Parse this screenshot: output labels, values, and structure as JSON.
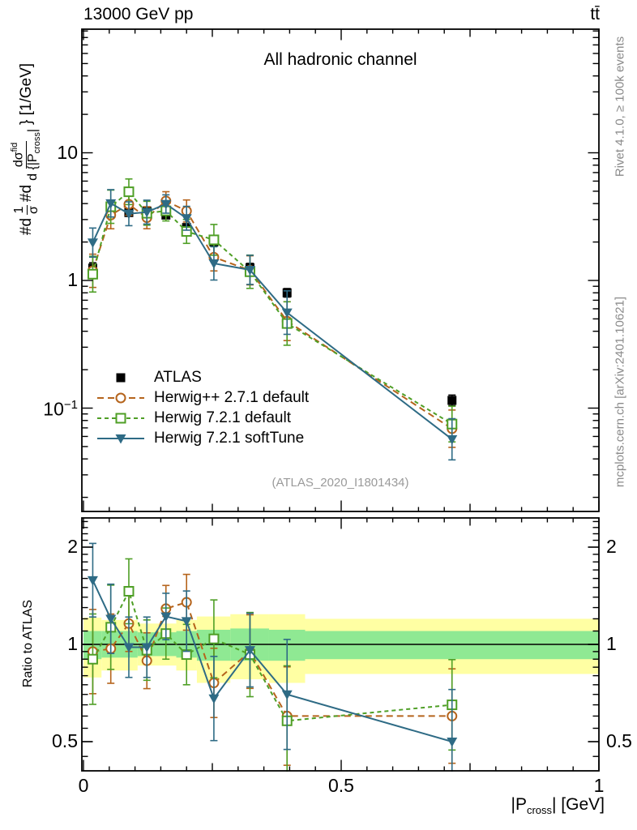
{
  "header": {
    "left": "13000 GeV pp",
    "right": "tt̄"
  },
  "main": {
    "title": "All hadronic channel",
    "watermark": "(ATLAS_2020_I1801434)"
  },
  "right_margin": {
    "top": "Rivet 4.1.0, ≥ 100k events",
    "bottom": "mcplots.cern.ch [arXiv:2401.10621]"
  },
  "ylabel": {
    "prefix1": "#d",
    "frac1_num": "1",
    "frac1_den": "σ",
    "prefix2": "#d",
    "frac2_num": "dσ",
    "frac2_num_sup": "fid",
    "frac2_den": "d {|P",
    "frac2_den_sub": "cross",
    "frac2_den_post": "|",
    "suffix": "} [1/GeV]"
  },
  "xlabel": {
    "pre": "|P",
    "sub": "cross",
    "post": "| [GeV]"
  },
  "ratio": {
    "ylabel": "Ratio to ATLAS"
  },
  "chart_data": {
    "type": "line",
    "title": "All hadronic channel",
    "xlabel": "|P_cross| [GeV]",
    "ylabel": "#d 1/σ #d dσ^fid / d{|P_cross|} [1/GeV]",
    "ratio_ylabel": "Ratio to ATLAS",
    "x_axis": {
      "min": 0,
      "max": 1,
      "ticks": [
        {
          "v": 0,
          "label": "0"
        },
        {
          "v": 0.5,
          "label": "0.5"
        },
        {
          "v": 1,
          "label": "1"
        }
      ],
      "minor_step": 0.05
    },
    "main_axis": {
      "log": true,
      "ymin": 0.0153,
      "ymax": 94,
      "ticks": [
        {
          "v": 10,
          "base": "10",
          "sup": ""
        },
        {
          "v": 1,
          "base": "1",
          "sup": ""
        },
        {
          "v": 0.1,
          "base": "10",
          "sup": "−1"
        }
      ]
    },
    "ratio_axis": {
      "log": true,
      "ymin": 0.404,
      "ymax": 2.47,
      "ticks": [
        {
          "v": 2,
          "base": "2",
          "sup": ""
        },
        {
          "v": 1,
          "base": "1",
          "sup": ""
        },
        {
          "v": 0.5,
          "base": "0.5",
          "sup": ""
        }
      ],
      "minor": [
        0.45,
        0.5,
        0.55,
        0.6,
        0.65,
        0.7,
        0.75,
        0.8,
        0.85,
        0.9,
        0.95,
        1,
        1.1,
        1.2,
        1.3,
        1.4,
        1.5,
        1.6,
        1.7,
        1.8,
        1.9,
        2,
        2.1,
        2.2,
        2.3,
        2.4
      ]
    },
    "x": [
      0.018,
      0.053,
      0.088,
      0.123,
      0.16,
      0.2,
      0.253,
      0.323,
      0.395,
      0.715
    ],
    "bin_edges": [
      0,
      0.035,
      0.07,
      0.105,
      0.14,
      0.18,
      0.22,
      0.285,
      0.36,
      0.43,
      1.0
    ],
    "series": [
      {
        "id": "atlas",
        "name": "ATLAS",
        "color": "#000000",
        "marker": "square-filled",
        "line": "none",
        "values": [
          1.25,
          3.35,
          3.4,
          3.5,
          3.25,
          2.6,
          2.0,
          1.26,
          0.8,
          0.115
        ],
        "err_factor": [
          1.1,
          1.06,
          1.06,
          1.06,
          1.06,
          1.06,
          1.07,
          1.08,
          1.08,
          1.1
        ]
      },
      {
        "id": "herwigpp",
        "name": "Herwig++ 2.7.1 default",
        "color": "#b5641c",
        "marker": "circle-open",
        "line": "dashed",
        "dash": "8,5",
        "values": [
          1.19,
          3.25,
          3.95,
          3.1,
          4.2,
          3.5,
          1.52,
          1.2,
          0.48,
          0.069
        ],
        "ratio": [
          0.95,
          0.97,
          1.16,
          0.89,
          1.29,
          1.35,
          0.76,
          0.95,
          0.6,
          0.6
        ],
        "err_factor": [
          1.35,
          1.28,
          1.22,
          1.22,
          1.18,
          1.22,
          1.28,
          1.3,
          1.42,
          1.4
        ]
      },
      {
        "id": "herwig721",
        "name": "Herwig 7.2.1 default",
        "color": "#4f9f26",
        "marker": "square-open",
        "line": "dashed",
        "dash": "5,4",
        "values": [
          1.12,
          3.78,
          4.95,
          3.36,
          3.51,
          2.42,
          2.08,
          1.17,
          0.46,
          0.075
        ],
        "ratio": [
          0.9,
          1.13,
          1.46,
          0.96,
          1.08,
          0.93,
          1.04,
          0.93,
          0.58,
          0.65
        ],
        "err_factor": [
          1.38,
          1.35,
          1.26,
          1.24,
          1.2,
          1.24,
          1.32,
          1.35,
          1.48,
          1.38
        ]
      },
      {
        "id": "softtune",
        "name": "Herwig 7.2.1 softTune",
        "color": "#2e6b85",
        "marker": "triangle-down",
        "line": "solid",
        "dash": "",
        "values": [
          1.98,
          4.02,
          3.33,
          3.43,
          3.97,
          3.07,
          1.36,
          1.21,
          0.56,
          0.057
        ],
        "ratio": [
          1.58,
          1.2,
          0.98,
          0.98,
          1.22,
          1.18,
          0.68,
          0.96,
          0.7,
          0.5
        ],
        "err_factor": [
          1.3,
          1.28,
          1.24,
          1.24,
          1.18,
          1.24,
          1.35,
          1.3,
          1.48,
          1.45
        ]
      }
    ],
    "bands": {
      "yellow": {
        "color": "#ffffa3",
        "lo": [
          0.79,
          0.83,
          0.83,
          0.86,
          0.86,
          0.83,
          0.76,
          0.78,
          0.76,
          0.81
        ],
        "hi": [
          1.21,
          1.19,
          1.19,
          1.16,
          1.16,
          1.19,
          1.22,
          1.24,
          1.24,
          1.2
        ]
      },
      "green": {
        "color": "#8fe993",
        "lo": [
          0.9,
          0.91,
          0.91,
          0.92,
          0.92,
          0.91,
          0.89,
          0.89,
          0.89,
          0.9
        ],
        "hi": [
          1.1,
          1.1,
          1.1,
          1.09,
          1.09,
          1.1,
          1.11,
          1.12,
          1.11,
          1.1
        ]
      }
    },
    "reference_line": 1,
    "legend_position": "center-left",
    "grid": false
  }
}
